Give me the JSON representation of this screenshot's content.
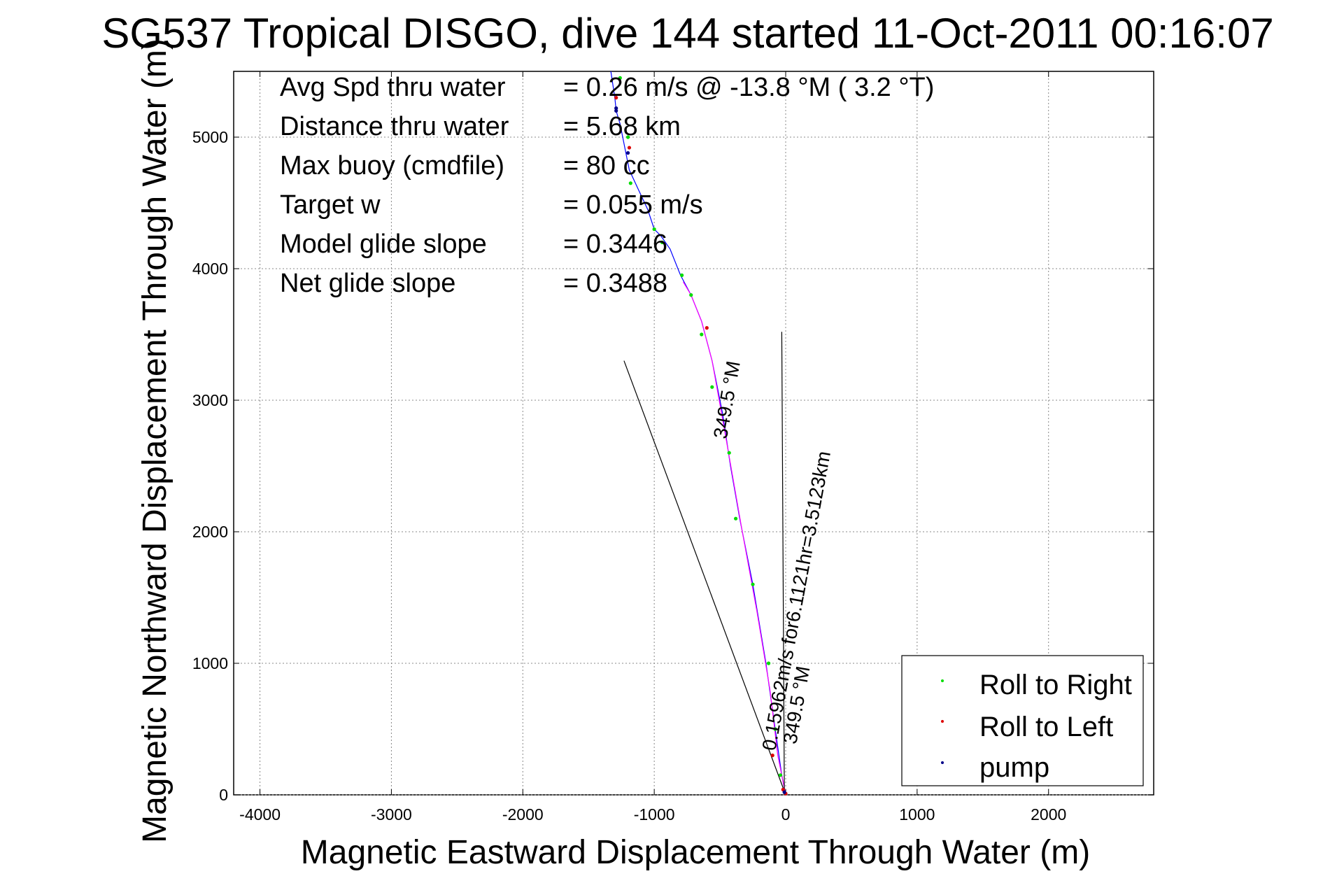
{
  "chart_data": {
    "type": "line",
    "title": "SG537 Tropical DISGO, dive 144 started 11-Oct-2011 00:16:07",
    "xlabel": "Magnetic Eastward Displacement Through Water (m)",
    "ylabel": "Magnetic Northward Displacement Through Water (m)",
    "xlim": [
      -4200,
      2800
    ],
    "ylim": [
      0,
      5500
    ],
    "xticks": [
      -4000,
      -3000,
      -2000,
      -1000,
      0,
      1000,
      2000
    ],
    "yticks": [
      0,
      1000,
      2000,
      3000,
      4000,
      5000
    ],
    "grid": true,
    "legend_position": "bottom-right",
    "stats": [
      {
        "label": "Avg Spd thru water",
        "value": "=  0.26 m/s @ -13.8 °M (  3.2 °T)"
      },
      {
        "label": "Distance thru water",
        "value": "=  5.68 km"
      },
      {
        "label": "Max buoy (cmdfile)",
        "value": "= 80 cc"
      },
      {
        "label": "Target w",
        "value": "= 0.055 m/s"
      },
      {
        "label": "Model glide slope",
        "value": "= 0.3446"
      },
      {
        "label": "Net glide slope",
        "value": "= 0.3488"
      }
    ],
    "series": [
      {
        "name": "Roll to Right",
        "color": "#00dd00",
        "marker": "dot",
        "x": [
          -40,
          -80,
          -130,
          -250,
          -380,
          -430,
          -560,
          -640,
          -720,
          -790,
          -940,
          -1000,
          -1180,
          -1200,
          -1260
        ],
        "y": [
          150,
          500,
          1000,
          1600,
          2100,
          2600,
          3100,
          3500,
          3800,
          3950,
          4200,
          4300,
          4650,
          5000,
          5450
        ]
      },
      {
        "name": "Roll to Left",
        "color": "#dd0000",
        "marker": "dot",
        "x": [
          0,
          -20,
          -100,
          -600,
          -1190,
          -1290
        ],
        "y": [
          10,
          40,
          300,
          3550,
          4920,
          5300
        ]
      },
      {
        "name": "pump",
        "color": "#000088",
        "marker": "dot",
        "x": [
          -10,
          -1200,
          -1290,
          -1290
        ],
        "y": [
          20,
          4880,
          5200,
          5220
        ]
      },
      {
        "name": "",
        "color": "#0000ff",
        "marker": "line",
        "x": [
          0,
          -30,
          -80,
          -150,
          -250,
          -350,
          -420,
          -480,
          -560,
          -640,
          -720,
          -800,
          -880,
          -950,
          -1000,
          -1050,
          -1120,
          -1190,
          -1220,
          -1260,
          -1290,
          -1300,
          -1330
        ],
        "y": [
          0,
          150,
          500,
          1000,
          1600,
          2100,
          2500,
          2900,
          3300,
          3600,
          3800,
          3950,
          4150,
          4250,
          4300,
          4450,
          4600,
          4750,
          4900,
          5100,
          5200,
          5300,
          5500
        ]
      },
      {
        "name": "",
        "color": "#ff00ff",
        "marker": "line",
        "x": [
          0,
          -60,
          -120,
          -220,
          -330,
          -400,
          -470,
          -560,
          -640,
          -720,
          -780
        ],
        "y": [
          0,
          300,
          800,
          1400,
          2000,
          2400,
          2800,
          3300,
          3600,
          3800,
          3900
        ]
      },
      {
        "name": "",
        "color": "#000000",
        "marker": "line",
        "x": [
          0,
          -1230
        ],
        "y": [
          0,
          3300
        ]
      },
      {
        "name": "",
        "color": "#000000",
        "marker": "line",
        "x": [
          -10,
          -30
        ],
        "y": [
          0,
          3520
        ]
      }
    ],
    "annotations": [
      {
        "text": "0.15962m/s for6.1121hr=3.5123km",
        "x": -80,
        "y": 330,
        "angle": 79.5
      },
      {
        "text": "349.5 °M",
        "x": 80,
        "y": 380,
        "angle": 80
      },
      {
        "text": "349.5 °M",
        "x": -450,
        "y": 2700,
        "angle": 80
      }
    ]
  }
}
